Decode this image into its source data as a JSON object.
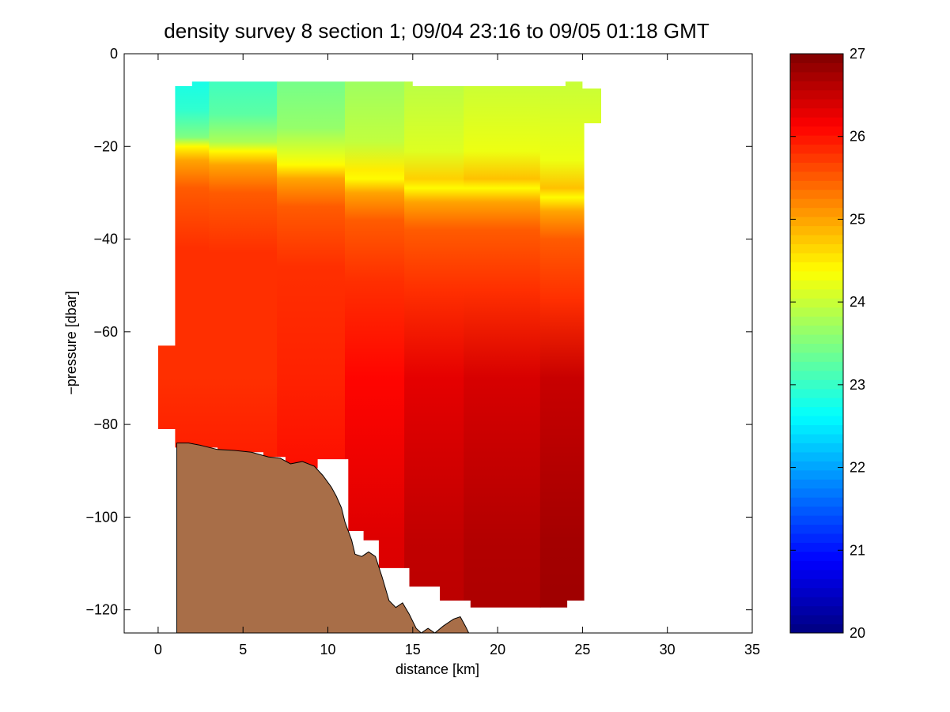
{
  "chart_data": {
    "type": "heatmap",
    "title": "density survey 8 section 1; 09/04 23:16 to 09/05 01:18 GMT",
    "xlabel": "distance [km]",
    "ylabel": "−pressure [dbar]",
    "xlim": [
      -2,
      35
    ],
    "ylim": [
      -125,
      0
    ],
    "x_ticks": [
      0,
      5,
      10,
      15,
      20,
      25,
      30,
      35
    ],
    "x_tick_labels": [
      "0",
      "5",
      "10",
      "15",
      "20",
      "25",
      "30",
      "35"
    ],
    "y_ticks": [
      0,
      -20,
      -40,
      -60,
      -80,
      -100,
      -120
    ],
    "y_tick_labels": [
      "0",
      "−20",
      "−40",
      "−60",
      "−80",
      "−100",
      "−120"
    ],
    "colorbar": {
      "colormap": "jet",
      "range": [
        20,
        27
      ],
      "ticks": [
        20,
        21,
        22,
        23,
        24,
        25,
        26,
        27
      ],
      "tick_labels": [
        "20",
        "21",
        "22",
        "23",
        "24",
        "25",
        "26",
        "27"
      ]
    },
    "density_profiles": [
      {
        "distance": 1,
        "surface": 22.6,
        "pycnocline_depth": -20,
        "deep": 25.8
      },
      {
        "distance": 5,
        "surface": 22.9,
        "pycnocline_depth": -21,
        "deep": 25.8
      },
      {
        "distance": 9,
        "surface": 23.3,
        "pycnocline_depth": -24,
        "deep": 25.9
      },
      {
        "distance": 13,
        "surface": 23.6,
        "pycnocline_depth": -27,
        "deep": 26.1
      },
      {
        "distance": 16,
        "surface": 23.8,
        "pycnocline_depth": -29,
        "deep": 26.3
      },
      {
        "distance": 20,
        "surface": 23.9,
        "pycnocline_depth": -29,
        "deep": 26.4
      },
      {
        "distance": 25,
        "surface": 23.9,
        "pycnocline_depth": -31,
        "deep": 26.5
      }
    ],
    "data_extent": [
      {
        "distance": 0,
        "pressure": -63
      },
      {
        "distance": 1,
        "pressure": -63
      },
      {
        "distance": 1,
        "pressure": -7
      },
      {
        "distance": 2,
        "pressure": -7
      },
      {
        "distance": 2,
        "pressure": -6
      },
      {
        "distance": 15,
        "pressure": -6
      },
      {
        "distance": 15,
        "pressure": -7
      },
      {
        "distance": 24,
        "pressure": -7
      },
      {
        "distance": 24,
        "pressure": -6
      },
      {
        "distance": 25,
        "pressure": -6
      },
      {
        "distance": 25,
        "pressure": -7.5
      },
      {
        "distance": 26.1,
        "pressure": -7.5
      },
      {
        "distance": 26.1,
        "pressure": -15
      },
      {
        "distance": 25.1,
        "pressure": -15
      },
      {
        "distance": 25.1,
        "pressure": -118
      },
      {
        "distance": 24.1,
        "pressure": -118
      },
      {
        "distance": 24.1,
        "pressure": -119.5
      },
      {
        "distance": 18.4,
        "pressure": -119.5
      },
      {
        "distance": 18.4,
        "pressure": -118
      },
      {
        "distance": 16.6,
        "pressure": -118
      },
      {
        "distance": 16.6,
        "pressure": -115
      },
      {
        "distance": 14.8,
        "pressure": -115
      },
      {
        "distance": 14.8,
        "pressure": -111
      },
      {
        "distance": 13,
        "pressure": -111
      },
      {
        "distance": 13,
        "pressure": -105
      },
      {
        "distance": 12.1,
        "pressure": -105
      },
      {
        "distance": 12.1,
        "pressure": -103
      },
      {
        "distance": 11.2,
        "pressure": -103
      },
      {
        "distance": 11.2,
        "pressure": -87.5
      },
      {
        "distance": 9.4,
        "pressure": -87.5
      },
      {
        "distance": 9.4,
        "pressure": -89.5
      },
      {
        "distance": 7.5,
        "pressure": -89.5
      },
      {
        "distance": 7.5,
        "pressure": -87
      },
      {
        "distance": 6.2,
        "pressure": -87
      },
      {
        "distance": 6.2,
        "pressure": -86
      },
      {
        "distance": 3.5,
        "pressure": -86
      },
      {
        "distance": 3.5,
        "pressure": -85
      },
      {
        "distance": 1,
        "pressure": -85
      },
      {
        "distance": 1,
        "pressure": -81
      },
      {
        "distance": 0,
        "pressure": -81
      }
    ],
    "bathymetry": [
      {
        "distance": 1.1,
        "pressure": -84
      },
      {
        "distance": 1.8,
        "pressure": -84
      },
      {
        "distance": 2.5,
        "pressure": -84.5
      },
      {
        "distance": 3.5,
        "pressure": -85.4
      },
      {
        "distance": 4.5,
        "pressure": -85.6
      },
      {
        "distance": 5.5,
        "pressure": -86
      },
      {
        "distance": 6.5,
        "pressure": -87
      },
      {
        "distance": 7.2,
        "pressure": -87.3
      },
      {
        "distance": 7.8,
        "pressure": -88.5
      },
      {
        "distance": 8.5,
        "pressure": -88
      },
      {
        "distance": 9.2,
        "pressure": -89
      },
      {
        "distance": 9.7,
        "pressure": -91
      },
      {
        "distance": 10.2,
        "pressure": -93.5
      },
      {
        "distance": 10.5,
        "pressure": -95.5
      },
      {
        "distance": 10.8,
        "pressure": -98
      },
      {
        "distance": 11.0,
        "pressure": -101
      },
      {
        "distance": 11.4,
        "pressure": -105
      },
      {
        "distance": 11.6,
        "pressure": -108
      },
      {
        "distance": 12.0,
        "pressure": -108.5
      },
      {
        "distance": 12.4,
        "pressure": -107.5
      },
      {
        "distance": 12.8,
        "pressure": -108.5
      },
      {
        "distance": 13.2,
        "pressure": -113
      },
      {
        "distance": 13.6,
        "pressure": -118
      },
      {
        "distance": 14.0,
        "pressure": -119.5
      },
      {
        "distance": 14.4,
        "pressure": -118.5
      },
      {
        "distance": 14.8,
        "pressure": -121
      },
      {
        "distance": 15.2,
        "pressure": -124
      },
      {
        "distance": 15.5,
        "pressure": -125
      },
      {
        "distance": 15.9,
        "pressure": -124
      },
      {
        "distance": 16.3,
        "pressure": -125
      },
      {
        "distance": 16.8,
        "pressure": -123.5
      },
      {
        "distance": 17.4,
        "pressure": -122
      },
      {
        "distance": 17.8,
        "pressure": -121.5
      },
      {
        "distance": 18.1,
        "pressure": -123.5
      },
      {
        "distance": 18.3,
        "pressure": -125
      }
    ],
    "colors": {
      "seafloor": "#a86e48",
      "axes": "#000000",
      "background": "#ffffff"
    }
  }
}
